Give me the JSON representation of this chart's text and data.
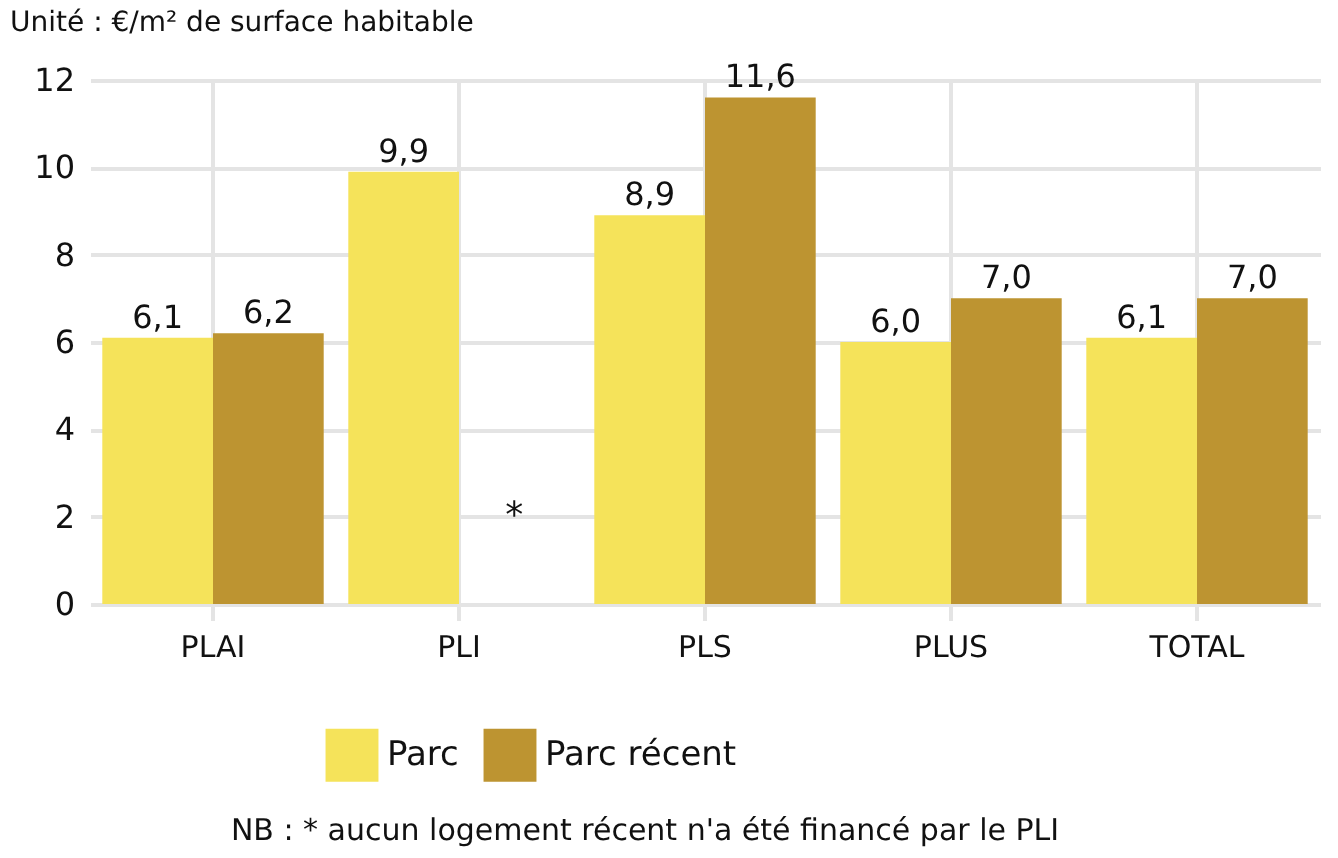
{
  "chart_data": {
    "type": "bar",
    "title": "Unité : €/m² de surface habitable",
    "categories": [
      "PLAI",
      "PLI",
      "PLS",
      "PLUS",
      "TOTAL"
    ],
    "series": [
      {
        "name": "Parc",
        "color": "#f5e35a",
        "values": [
          6.1,
          9.9,
          8.9,
          6.0,
          6.1
        ],
        "value_labels": [
          "6,1",
          "9,9",
          "8,9",
          "6,0",
          "6,1"
        ]
      },
      {
        "name": "Parc récent",
        "color": "#bd9431",
        "values": [
          6.2,
          null,
          11.6,
          7.0,
          7.0
        ],
        "value_labels": [
          "6,2",
          null,
          "11,6",
          "7,0",
          "7,0"
        ]
      }
    ],
    "ylim": [
      0,
      12
    ],
    "yticks": [
      0,
      2,
      4,
      6,
      8,
      10,
      12
    ],
    "grid": true,
    "legend": "bottom",
    "annotations": [
      {
        "text": "*",
        "x": "PLI",
        "y": 2
      },
      "NB : * aucun logement récent n'a été financé par le PLI"
    ]
  }
}
